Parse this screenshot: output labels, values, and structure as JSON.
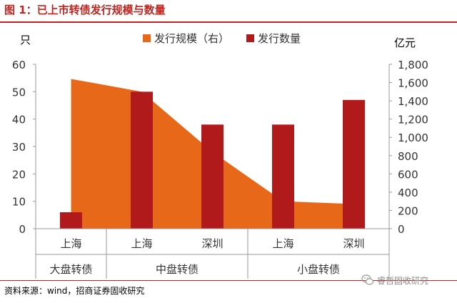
{
  "figure": {
    "title": "图 1：已上市转债发行规模与数量",
    "source": "资料来源：wind，招商证券固收研究",
    "watermark": "睿哲固收研究",
    "watermark_icon": "wechat-icon"
  },
  "colors": {
    "title": "#c0241e",
    "area": "#e8681a",
    "bar": "#b01a1a",
    "axis": "#999999",
    "text": "#333333"
  },
  "chart_data": {
    "type": "bar",
    "categories": [
      "上海",
      "上海",
      "深圳",
      "上海",
      "深圳"
    ],
    "groups": [
      {
        "label": "大盘转债",
        "span": 1
      },
      {
        "label": "中盘转债",
        "span": 2
      },
      {
        "label": "小盘转债",
        "span": 2
      }
    ],
    "series": [
      {
        "name": "发行规模（右）",
        "type": "area",
        "axis": "right",
        "values": [
          1640,
          1500,
          840,
          300,
          270
        ]
      },
      {
        "name": "发行数量",
        "type": "bar",
        "axis": "left",
        "values": [
          6,
          50,
          38,
          38,
          47
        ]
      }
    ],
    "ylabel": "只",
    "ylabel_right": "亿元",
    "ylim": [
      0,
      60
    ],
    "ylim_right": [
      0,
      1800
    ],
    "yticks": [
      "0",
      "10",
      "20",
      "30",
      "40",
      "50",
      "60"
    ],
    "yticks_right": [
      "0",
      "200",
      "400",
      "600",
      "800",
      "1,000",
      "1,200",
      "1,400",
      "1,600",
      "1,800"
    ],
    "legend_position": "top",
    "grid": false
  }
}
